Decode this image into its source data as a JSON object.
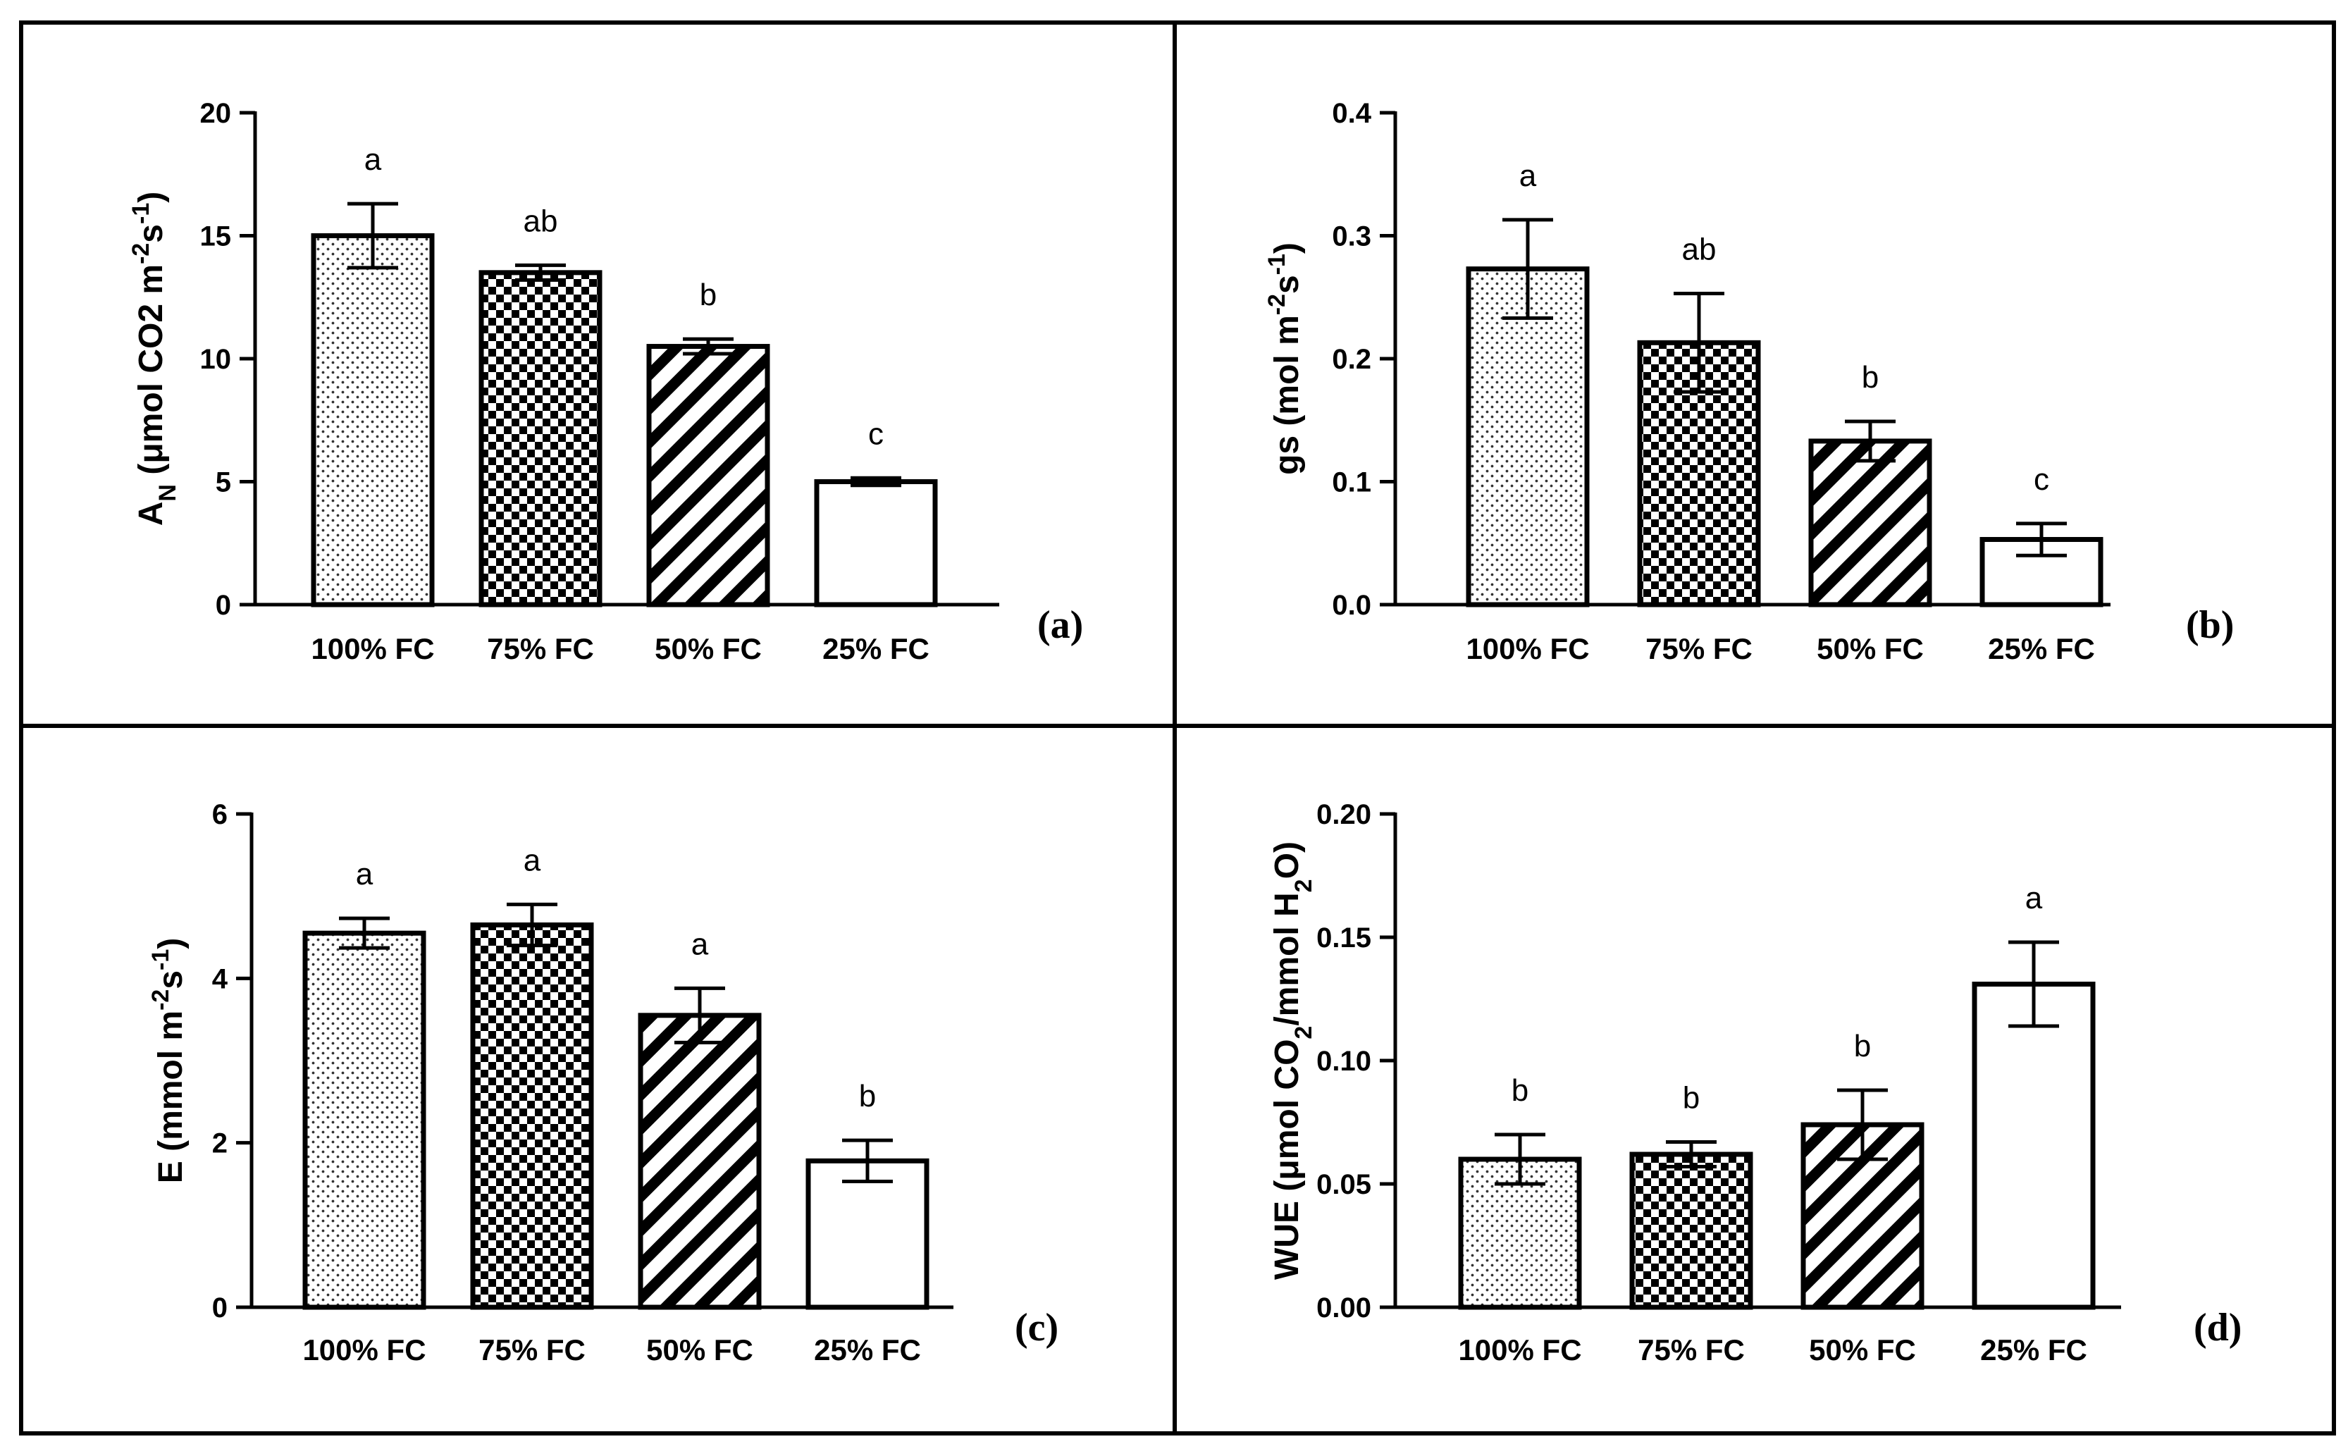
{
  "figure": {
    "frame_color": "#000000",
    "background": "#ffffff"
  },
  "chart_data": [
    {
      "type": "bar",
      "panel": "(a)",
      "categories": [
        "100% FC",
        "75% FC",
        "50% FC",
        "25% FC"
      ],
      "values": [
        15.0,
        13.5,
        10.5,
        5.0
      ],
      "errors": [
        1.3,
        0.3,
        0.3,
        0.15
      ],
      "significance": [
        "a",
        "ab",
        "b",
        "c"
      ],
      "patterns": [
        "dots",
        "checker",
        "stripes",
        "none"
      ],
      "ylabel_parts": [
        "A",
        "N",
        " (μmol CO",
        "2",
        " m",
        "-2",
        "s",
        "-1",
        ")"
      ],
      "ylim": [
        0,
        20
      ],
      "yticks": [
        "0",
        "5",
        "10",
        "15",
        "20"
      ],
      "ytick_values": [
        0,
        5,
        10,
        15,
        20
      ]
    },
    {
      "type": "bar",
      "panel": "(b)",
      "categories": [
        "100% FC",
        "75% FC",
        "50% FC",
        "25% FC"
      ],
      "values": [
        0.273,
        0.213,
        0.133,
        0.053
      ],
      "errors": [
        0.04,
        0.04,
        0.016,
        0.013
      ],
      "significance": [
        "a",
        "ab",
        "b",
        "c"
      ],
      "patterns": [
        "dots",
        "checker",
        "stripes",
        "none"
      ],
      "ylabel_parts": [
        "gs (mol m",
        "-2",
        "s",
        "-1",
        ")"
      ],
      "ylim": [
        0,
        0.4
      ],
      "yticks": [
        "0.0",
        "0.1",
        "0.2",
        "0.3",
        "0.4"
      ],
      "ytick_values": [
        0,
        0.1,
        0.2,
        0.3,
        0.4
      ]
    },
    {
      "type": "bar",
      "panel": "(c)",
      "categories": [
        "100% FC",
        "75% FC",
        "50% FC",
        "25% FC"
      ],
      "values": [
        4.55,
        4.65,
        3.55,
        1.78
      ],
      "errors": [
        0.18,
        0.25,
        0.33,
        0.25
      ],
      "significance": [
        "a",
        "a",
        "a",
        "b"
      ],
      "patterns": [
        "dots",
        "checker",
        "stripes",
        "none"
      ],
      "ylabel_parts": [
        "E (mmol m",
        "-2",
        "s",
        "-1",
        ")"
      ],
      "ylim": [
        0,
        6
      ],
      "yticks": [
        "0",
        "2",
        "4",
        "6"
      ],
      "ytick_values": [
        0,
        2,
        4,
        6
      ]
    },
    {
      "type": "bar",
      "panel": "(d)",
      "categories": [
        "100% FC",
        "75% FC",
        "50% FC",
        "25% FC"
      ],
      "values": [
        0.06,
        0.062,
        0.074,
        0.131
      ],
      "errors": [
        0.01,
        0.005,
        0.014,
        0.017
      ],
      "significance": [
        "b",
        "b",
        "b",
        "a"
      ],
      "patterns": [
        "dots",
        "checker",
        "stripes",
        "none"
      ],
      "ylabel_parts": [
        "WUE (μmol CO",
        "2",
        "/mmol H",
        "2",
        "O)"
      ],
      "ylim": [
        0,
        0.2
      ],
      "yticks": [
        "0.00",
        "0.05",
        "0.10",
        "0.15",
        "0.20"
      ],
      "ytick_values": [
        0,
        0.05,
        0.1,
        0.15,
        0.2
      ]
    }
  ]
}
